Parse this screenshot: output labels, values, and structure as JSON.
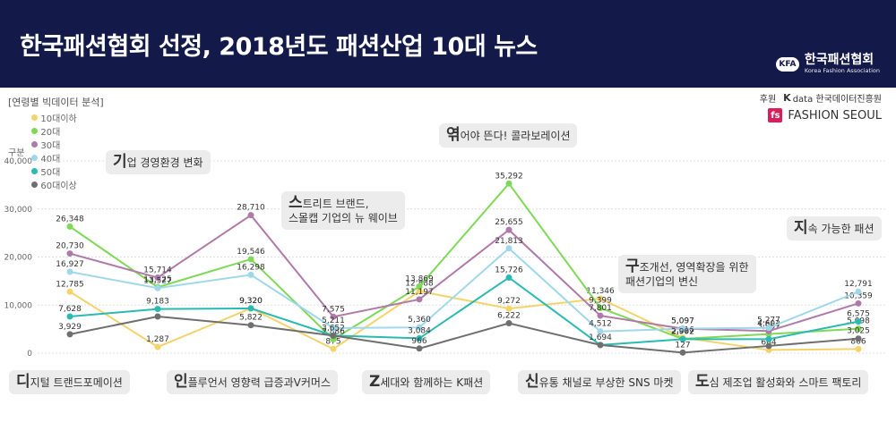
{
  "header": {
    "title": "한국패션협회 선정, 2018년도 패션산업 10대 뉴스"
  },
  "logo": {
    "badge": "KFA",
    "name": "한국패션협회",
    "name_en": "Korea Fashion Association"
  },
  "section_label": "[연령별 빅데이터 분석]",
  "legend_label": "구분",
  "sponsor": {
    "label": "후원",
    "org1_mark": "K",
    "org1_name": "data 한국데이터진흥원",
    "org2_mark": "fs",
    "org2_name": "FASHION SEOUL"
  },
  "tags": [
    {
      "big": "디",
      "rest": "지털 트랜드포메이션"
    },
    {
      "big": "기",
      "rest": "업 경영환경 변화"
    },
    {
      "big": "인",
      "rest": "플루언서 영향력 급증과V커머스"
    },
    {
      "big": "스",
      "rest": "트리트 브랜드,",
      "line2": "스몰캡 기업의 뉴 웨이브"
    },
    {
      "big": "Z",
      "rest": "세대와 함께하는 K패션"
    },
    {
      "big": "엮",
      "rest": "어야 뜬다! 콜라보레이션"
    },
    {
      "big": "신",
      "rest": "유통 채널로 부상한 SNS 마켓"
    },
    {
      "big": "구",
      "rest": "조개선, 영역확장을 위한",
      "line2": "패션기업의 변신"
    },
    {
      "big": "도",
      "rest": "심 제조업 활성화와 스마트 팩토리"
    },
    {
      "big": "지",
      "rest": "속 가능한 패션"
    }
  ],
  "chart_data": {
    "type": "line",
    "x": [
      1,
      2,
      3,
      4,
      5,
      6,
      7,
      8,
      9,
      10
    ],
    "ylim": [
      0,
      40000
    ],
    "yticks": [
      "0",
      "10,000",
      "20,000",
      "30,000",
      "40,000"
    ],
    "grid": true,
    "series": [
      {
        "name": "10대이하",
        "color": "#f3d46a",
        "values": [
          12785,
          1287,
          9320,
          875,
          12888,
          9272,
          11346,
          3216,
          664,
          866
        ],
        "labels": [
          "12,785",
          "1,287",
          "9,320",
          "875",
          "12,888",
          "9,272",
          "11,346",
          "3,216",
          "664",
          "866"
        ]
      },
      {
        "name": "20대",
        "color": "#7ed957",
        "values": [
          26348,
          13725,
          19546,
          2886,
          13869,
          35292,
          9399,
          2967,
          3967,
          5098
        ],
        "labels": [
          "26,348",
          "13,725",
          "19,546",
          "2,886",
          "13,869",
          "35,292",
          "9,399",
          "2,967",
          "3,967",
          "5,098"
        ]
      },
      {
        "name": "30대",
        "color": "#b07aa8",
        "values": [
          20730,
          15714,
          28710,
          7575,
          11197,
          25655,
          7801,
          5097,
          4602,
          10359
        ],
        "labels": [
          "20,730",
          "15,714",
          "28,710",
          "7,575",
          "11,197",
          "25,655",
          "7,801",
          "5,097",
          "4,602",
          "10,359"
        ]
      },
      {
        "name": "40대",
        "color": "#9fd8ea",
        "values": [
          16927,
          13527,
          16298,
          5211,
          5360,
          21813,
          4512,
          5097,
          5277,
          12791
        ],
        "labels": [
          "16,927",
          "13,527",
          "16,298",
          "5,211",
          "5,360",
          "21,813",
          "4,512",
          "5,097",
          "5,277",
          "12,791"
        ]
      },
      {
        "name": "50대",
        "color": "#2bbab1",
        "values": [
          7628,
          9183,
          9320,
          3652,
          3084,
          15726,
          1694,
          2902,
          2902,
          6575
        ],
        "labels": [
          "7,628",
          "9,183",
          "9,320",
          "3,652",
          "3,084",
          "15,726",
          "1,694",
          "2,902",
          "",
          "6,575"
        ]
      },
      {
        "name": "60대이상",
        "color": "#6f6f6f",
        "values": [
          3929,
          7628,
          5822,
          3652,
          966,
          6222,
          1694,
          127,
          1500,
          3025
        ],
        "labels": [
          "3,929",
          "",
          "5,822",
          "",
          "966",
          "6,222",
          "",
          "127",
          "",
          "3,025"
        ]
      }
    ]
  }
}
